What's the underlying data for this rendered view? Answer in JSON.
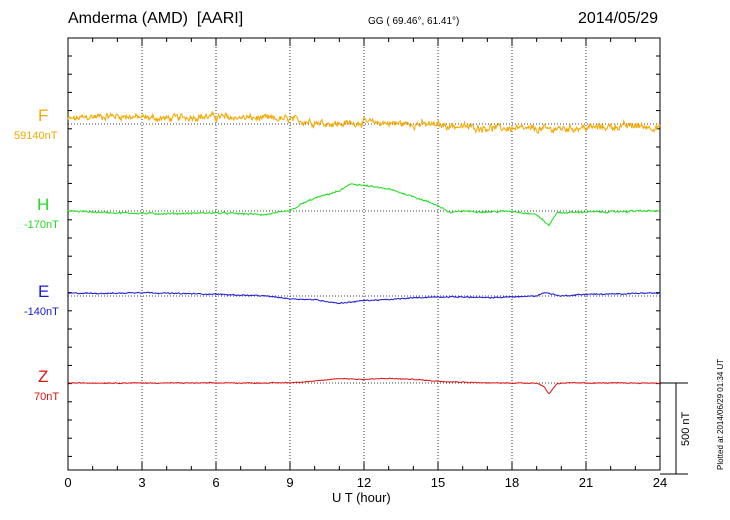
{
  "header": {
    "station": "Amderma (AMD)",
    "network": "[AARI]",
    "coords": "GG ( 69.46°,  61.41°)",
    "date": "2014/05/29"
  },
  "chart_data": {
    "type": "line",
    "xlabel": "U T (hour)",
    "xlim": [
      0,
      24
    ],
    "xticks": [
      0,
      3,
      6,
      9,
      12,
      15,
      18,
      21,
      24
    ],
    "x_tick_labels": [
      "0",
      "3",
      "6",
      "9",
      "12",
      "15",
      "18",
      "21",
      "24"
    ],
    "scale_bar": "500 nT",
    "plotted_note": "Plotted at 2014/06/29 01:34 UT",
    "series": [
      {
        "name": "F",
        "baseline": "59140nT",
        "color": "#f5a800",
        "offsets_nT": [
          [
            0,
            25
          ],
          [
            1,
            40
          ],
          [
            2,
            45
          ],
          [
            3,
            35
          ],
          [
            4,
            30
          ],
          [
            5,
            40
          ],
          [
            6,
            40
          ],
          [
            7,
            35
          ],
          [
            8,
            30
          ],
          [
            9,
            25
          ],
          [
            10,
            10
          ],
          [
            11,
            0
          ],
          [
            12,
            10
          ],
          [
            13,
            5
          ],
          [
            14,
            0
          ],
          [
            15,
            -5
          ],
          [
            16,
            -15
          ],
          [
            17,
            -20
          ],
          [
            18,
            -25
          ],
          [
            19,
            -30
          ],
          [
            20,
            -25
          ],
          [
            21,
            -20
          ],
          [
            22,
            -15
          ],
          [
            23,
            -10
          ],
          [
            24,
            -20
          ]
        ],
        "noise_nT": 25
      },
      {
        "name": "H",
        "baseline": "-170nT",
        "color": "#22dd22",
        "offsets_nT": [
          [
            0,
            0
          ],
          [
            2,
            -10
          ],
          [
            4,
            -15
          ],
          [
            6,
            -10
          ],
          [
            8,
            -20
          ],
          [
            9,
            0
          ],
          [
            9.5,
            40
          ],
          [
            10,
            70
          ],
          [
            11,
            110
          ],
          [
            11.5,
            150
          ],
          [
            12,
            140
          ],
          [
            13,
            120
          ],
          [
            14,
            80
          ],
          [
            15,
            30
          ],
          [
            15.5,
            -10
          ],
          [
            16,
            0
          ],
          [
            17,
            -5
          ],
          [
            18,
            0
          ],
          [
            19,
            -20
          ],
          [
            19.5,
            -80
          ],
          [
            19.8,
            -10
          ],
          [
            20,
            -10
          ],
          [
            21,
            -5
          ],
          [
            22,
            -5
          ],
          [
            23,
            0
          ],
          [
            24,
            0
          ]
        ],
        "noise_nT": 6
      },
      {
        "name": "E",
        "baseline": "-140nT",
        "color": "#1a1ad6",
        "offsets_nT": [
          [
            0,
            15
          ],
          [
            2,
            15
          ],
          [
            3,
            20
          ],
          [
            4,
            15
          ],
          [
            6,
            10
          ],
          [
            8,
            0
          ],
          [
            9,
            -15
          ],
          [
            10,
            -20
          ],
          [
            11,
            -40
          ],
          [
            12,
            -25
          ],
          [
            13,
            -20
          ],
          [
            14,
            -10
          ],
          [
            15,
            -5
          ],
          [
            16,
            -5
          ],
          [
            17,
            -10
          ],
          [
            18,
            -5
          ],
          [
            19,
            0
          ],
          [
            19.3,
            20
          ],
          [
            20,
            0
          ],
          [
            21,
            10
          ],
          [
            22,
            10
          ],
          [
            23,
            15
          ],
          [
            24,
            15
          ]
        ],
        "noise_nT": 4
      },
      {
        "name": "Z",
        "baseline": "70nT",
        "color": "#e01010",
        "offsets_nT": [
          [
            0,
            0
          ],
          [
            5,
            0
          ],
          [
            8,
            0
          ],
          [
            9,
            2
          ],
          [
            10,
            10
          ],
          [
            11,
            25
          ],
          [
            12,
            20
          ],
          [
            13,
            25
          ],
          [
            14,
            20
          ],
          [
            15,
            10
          ],
          [
            16,
            5
          ],
          [
            17,
            0
          ],
          [
            18,
            0
          ],
          [
            19,
            0
          ],
          [
            19.3,
            -20
          ],
          [
            19.5,
            -60
          ],
          [
            19.8,
            -5
          ],
          [
            20,
            0
          ],
          [
            22,
            0
          ],
          [
            24,
            0
          ]
        ],
        "noise_nT": 3
      }
    ]
  }
}
